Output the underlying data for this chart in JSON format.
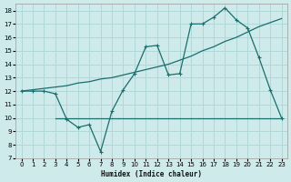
{
  "xlabel": "Humidex (Indice chaleur)",
  "bg_color": "#ceeaea",
  "grid_color": "#b0d8d8",
  "line_color": "#1a6e6e",
  "xlim": [
    -0.5,
    23.5
  ],
  "ylim": [
    7,
    18.5
  ],
  "xticks": [
    0,
    1,
    2,
    3,
    4,
    5,
    6,
    7,
    8,
    9,
    10,
    11,
    12,
    13,
    14,
    15,
    16,
    17,
    18,
    19,
    20,
    21,
    22,
    23
  ],
  "yticks": [
    7,
    8,
    9,
    10,
    11,
    12,
    13,
    14,
    15,
    16,
    17,
    18
  ],
  "line1_x": [
    0,
    1,
    2,
    3,
    4,
    5,
    6,
    7,
    8,
    9,
    10,
    11,
    12,
    13,
    14,
    15,
    16,
    17,
    18,
    19,
    20,
    21,
    22,
    23
  ],
  "line1_y": [
    12.0,
    12.0,
    12.0,
    11.8,
    9.9,
    9.3,
    9.5,
    7.5,
    10.5,
    12.1,
    13.3,
    15.3,
    15.4,
    13.2,
    13.3,
    17.0,
    17.0,
    17.5,
    18.2,
    17.3,
    16.7,
    14.5,
    12.1,
    10.0
  ],
  "line2_x": [
    3,
    8,
    20,
    23
  ],
  "line2_y": [
    10.0,
    10.0,
    10.0,
    10.0
  ],
  "line3_x": [
    0,
    1,
    2,
    3,
    4,
    5,
    6,
    7,
    8,
    9,
    10,
    11,
    12,
    13,
    14,
    15,
    16,
    17,
    18,
    19,
    20,
    21,
    22,
    23
  ],
  "line3_y": [
    12.0,
    12.1,
    12.2,
    12.3,
    12.4,
    12.6,
    12.7,
    12.9,
    13.0,
    13.2,
    13.4,
    13.6,
    13.8,
    14.0,
    14.3,
    14.6,
    15.0,
    15.3,
    15.7,
    16.0,
    16.4,
    16.8,
    17.1,
    17.4
  ]
}
